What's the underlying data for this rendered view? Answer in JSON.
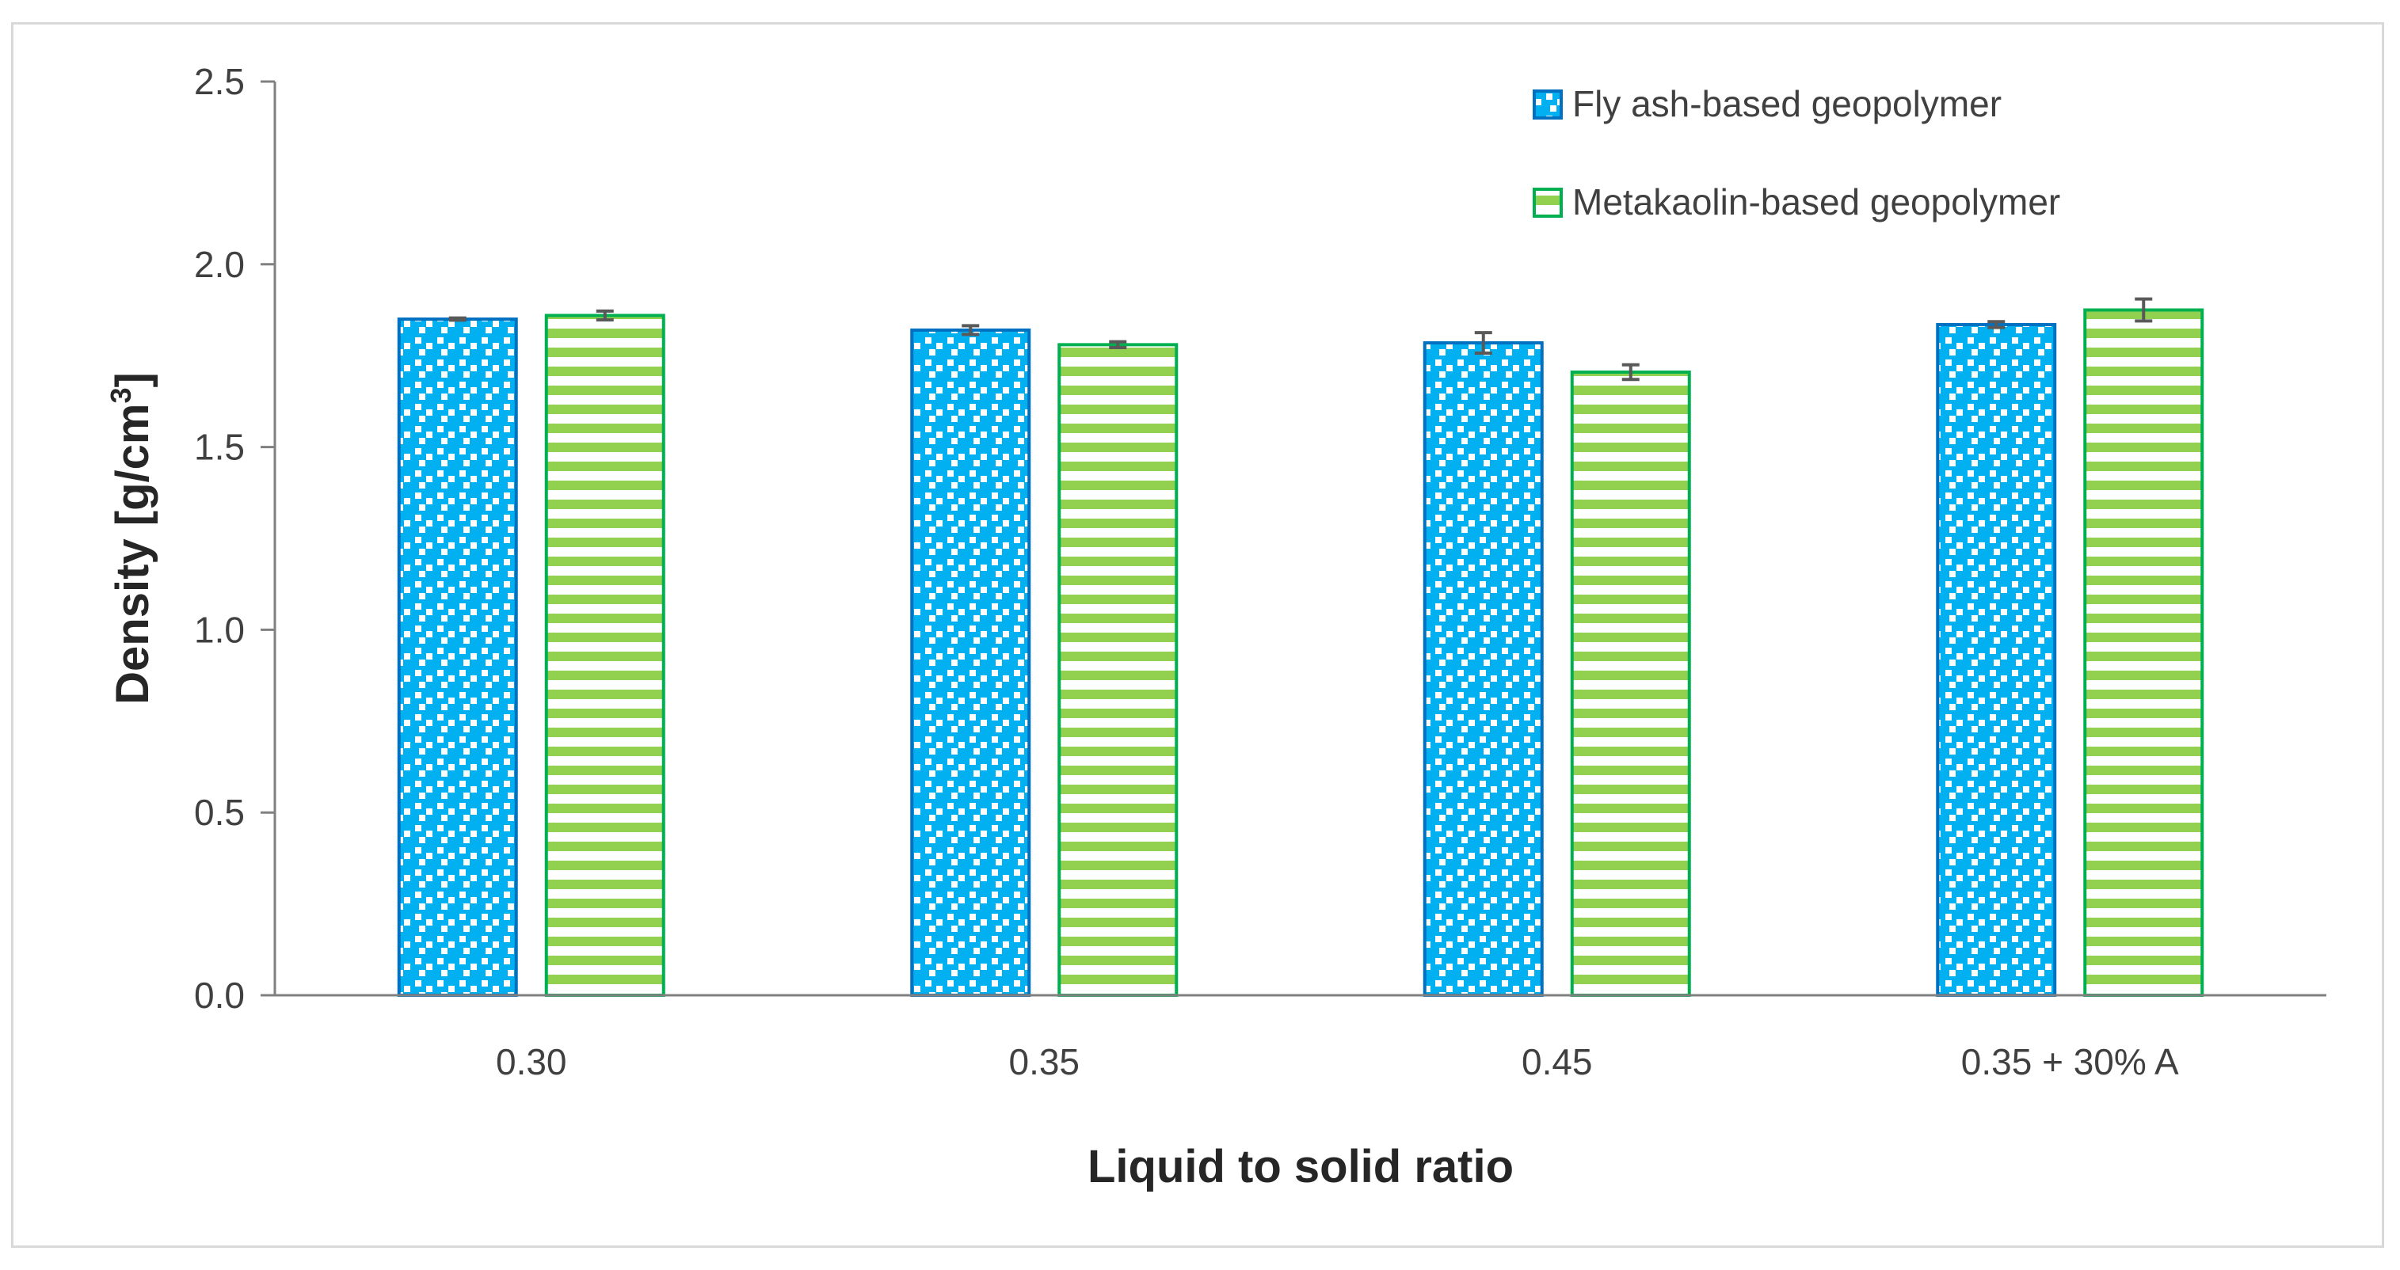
{
  "chart_data": {
    "type": "bar",
    "title": "",
    "xlabel": "Liquid to solid ratio",
    "ylabel_main": "Density [g/cm",
    "ylabel_sup": "3",
    "ylabel_end": "]",
    "categories": [
      "0.30",
      "0.35",
      "0.45",
      "0.35 + 30% A"
    ],
    "ylim": [
      0,
      2.5
    ],
    "yticks": [
      "0.0",
      "0.5",
      "1.0",
      "1.5",
      "2.0",
      "2.5"
    ],
    "ytick_values": [
      0,
      0.5,
      1.0,
      1.5,
      2.0,
      2.5
    ],
    "legend_position": "top-right",
    "series": [
      {
        "name": "Fly ash-based geopolymer",
        "values": [
          1.85,
          1.82,
          1.785,
          1.835
        ],
        "errors": [
          0.003,
          0.012,
          0.028,
          0.008
        ],
        "color": "#00b0f0",
        "edge_color": "#0070c0",
        "pattern": "dotted"
      },
      {
        "name": "Metakaolin-based geopolymer",
        "values": [
          1.86,
          1.78,
          1.705,
          1.875
        ],
        "errors": [
          0.012,
          0.008,
          0.02,
          0.03
        ],
        "color": "#92d050",
        "edge_color": "#00b050",
        "pattern": "horizontal-stripes"
      }
    ],
    "error_bar_color": "#595959",
    "axis_color": "#808080"
  }
}
